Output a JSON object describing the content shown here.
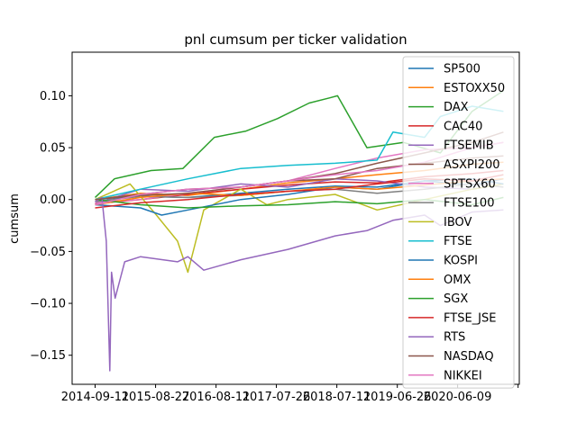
{
  "chart_data": {
    "type": "line",
    "title": "pnl cumsum per ticker validation",
    "xlabel": "",
    "ylabel": "cumsum",
    "x_tick_labels": [
      "2014-09-11",
      "2015-08-27",
      "2016-08-11",
      "2017-07-26",
      "2018-07-11",
      "2019-06-26",
      "2020-06-09"
    ],
    "x_tick_dates": [
      "2014-09-11",
      "2015-08-27",
      "2016-08-11",
      "2017-07-26",
      "2018-07-11",
      "2019-06-26",
      "2020-06-09",
      "2021-05-25"
    ],
    "xlim": [
      "2014-05-01",
      "2021-06-01"
    ],
    "ylim": [
      -0.178,
      0.142
    ],
    "yticks": [
      -0.15,
      -0.1,
      -0.05,
      0.0,
      0.05,
      0.1
    ],
    "ytick_labels": [
      "−0.15",
      "−0.10",
      "−0.05",
      "0.00",
      "0.05",
      "0.10"
    ],
    "grid": false,
    "legend_position": "top-right",
    "series": [
      {
        "name": "SP500",
        "color": "#1f77b4",
        "x": [
          "2014-09-11",
          "2015-06-01",
          "2016-03-01",
          "2017-01-01",
          "2017-10-01",
          "2018-07-01",
          "2019-03-01",
          "2019-12-01",
          "2020-09-01",
          "2021-03-01"
        ],
        "y": [
          0.0,
          0.003,
          0.002,
          0.006,
          0.01,
          0.013,
          0.012,
          0.018,
          0.014,
          0.02
        ]
      },
      {
        "name": "ESTOXX50",
        "color": "#ff7f0e",
        "x": [
          "2014-09-11",
          "2015-06-01",
          "2016-03-01",
          "2017-01-01",
          "2017-10-01",
          "2018-07-01",
          "2019-03-01",
          "2019-12-01",
          "2020-09-01",
          "2021-03-01"
        ],
        "y": [
          0.0,
          0.006,
          0.004,
          0.01,
          0.016,
          0.02,
          0.024,
          0.028,
          0.034,
          0.036
        ]
      },
      {
        "name": "DAX",
        "color": "#2ca02c",
        "x": [
          "2014-09-11",
          "2015-01-01",
          "2015-08-01",
          "2016-02-01",
          "2016-08-01",
          "2017-02-01",
          "2017-08-01",
          "2018-02-01",
          "2018-06-01",
          "2018-07-15",
          "2019-01-01",
          "2019-08-01",
          "2020-03-01",
          "2020-09-01",
          "2021-03-01"
        ],
        "y": [
          0.002,
          0.02,
          0.028,
          0.03,
          0.06,
          0.066,
          0.078,
          0.093,
          0.098,
          0.1,
          0.05,
          0.055,
          0.045,
          0.085,
          0.105
        ]
      },
      {
        "name": "CAC40",
        "color": "#d62728",
        "x": [
          "2014-09-11",
          "2015-06-01",
          "2016-03-01",
          "2017-01-01",
          "2017-10-01",
          "2018-07-01",
          "2019-03-01",
          "2019-12-01",
          "2020-09-01",
          "2021-03-01"
        ],
        "y": [
          -0.004,
          0.0,
          0.005,
          0.01,
          0.014,
          0.017,
          0.016,
          0.022,
          0.025,
          0.028
        ]
      },
      {
        "name": "FTSEMIB",
        "color": "#9467bd",
        "x": [
          "2014-09-11",
          "2015-01-01",
          "2015-06-01",
          "2016-03-01",
          "2017-01-01",
          "2017-10-01",
          "2018-07-01",
          "2019-03-01",
          "2019-12-01",
          "2020-09-01",
          "2021-03-01"
        ],
        "y": [
          -0.005,
          0.002,
          0.01,
          0.008,
          0.015,
          0.012,
          0.02,
          0.018,
          0.012,
          0.01,
          0.015
        ]
      },
      {
        "name": "ASXPI200",
        "color": "#8c564b",
        "x": [
          "2014-09-11",
          "2015-06-01",
          "2016-03-01",
          "2017-01-01",
          "2017-10-01",
          "2018-07-01",
          "2019-03-01",
          "2019-12-01",
          "2020-09-01",
          "2021-03-01"
        ],
        "y": [
          0.0,
          0.005,
          0.01,
          0.012,
          0.018,
          0.02,
          0.03,
          0.035,
          0.04,
          0.042
        ]
      },
      {
        "name": "SPTSX60",
        "color": "#e377c2",
        "x": [
          "2014-09-11",
          "2015-06-01",
          "2016-03-01",
          "2017-01-01",
          "2017-10-01",
          "2018-07-01",
          "2019-03-01",
          "2019-12-01",
          "2020-09-01",
          "2021-03-01"
        ],
        "y": [
          -0.003,
          0.0,
          0.006,
          0.012,
          0.018,
          0.03,
          0.04,
          0.048,
          0.05,
          0.055
        ]
      },
      {
        "name": "FTSE100",
        "color": "#7f7f7f",
        "x": [
          "2014-09-11",
          "2015-06-01",
          "2016-03-01",
          "2017-01-01",
          "2017-10-01",
          "2018-07-01",
          "2019-03-01",
          "2019-12-01",
          "2020-09-01",
          "2021-03-01"
        ],
        "y": [
          -0.002,
          0.003,
          0.002,
          0.004,
          0.008,
          0.01,
          0.006,
          0.01,
          0.015,
          0.012
        ]
      },
      {
        "name": "IBOV",
        "color": "#bcbd22",
        "x": [
          "2014-09-11",
          "2015-04-01",
          "2015-09-01",
          "2016-01-01",
          "2016-03-01",
          "2016-06-01",
          "2017-01-01",
          "2017-06-01",
          "2017-10-01",
          "2018-07-01",
          "2019-03-01",
          "2019-12-01",
          "2020-09-01",
          "2021-03-01"
        ],
        "y": [
          0.0,
          0.015,
          -0.015,
          -0.04,
          -0.07,
          -0.01,
          0.01,
          -0.005,
          0.0,
          0.005,
          -0.01,
          0.0,
          0.01,
          0.015
        ]
      },
      {
        "name": "FTSE",
        "color": "#17becf",
        "x": [
          "2014-09-11",
          "2015-06-01",
          "2016-03-01",
          "2017-01-01",
          "2017-10-01",
          "2018-07-01",
          "2019-03-01",
          "2019-06-01",
          "2019-12-01",
          "2020-03-01",
          "2020-09-01",
          "2021-03-01"
        ],
        "y": [
          0.0,
          0.01,
          0.02,
          0.03,
          0.033,
          0.035,
          0.038,
          0.065,
          0.06,
          0.08,
          0.09,
          0.085
        ]
      },
      {
        "name": "KOSPI",
        "color": "#1f77b4",
        "x": [
          "2014-09-11",
          "2015-06-01",
          "2015-10-01",
          "2016-03-01",
          "2017-01-01",
          "2017-10-01",
          "2018-07-01",
          "2019-03-01",
          "2019-12-01",
          "2020-09-01",
          "2021-03-01"
        ],
        "y": [
          -0.005,
          -0.008,
          -0.015,
          -0.01,
          0.0,
          0.005,
          0.012,
          0.01,
          0.018,
          0.02,
          0.015
        ]
      },
      {
        "name": "OMX",
        "color": "#ff7f0e",
        "x": [
          "2014-09-11",
          "2015-06-01",
          "2016-03-01",
          "2017-01-01",
          "2017-10-01",
          "2018-07-01",
          "2019-03-01",
          "2019-12-01",
          "2020-09-01",
          "2021-03-01"
        ],
        "y": [
          -0.005,
          0.002,
          0.006,
          0.004,
          0.008,
          0.012,
          0.01,
          0.014,
          0.018,
          0.02
        ]
      },
      {
        "name": "SGX",
        "color": "#2ca02c",
        "x": [
          "2014-09-11",
          "2015-06-01",
          "2016-03-01",
          "2017-01-01",
          "2017-10-01",
          "2018-07-01",
          "2019-03-01",
          "2019-12-01",
          "2020-09-01",
          "2021-03-01"
        ],
        "y": [
          0.0,
          -0.005,
          -0.008,
          -0.006,
          -0.005,
          -0.002,
          -0.004,
          0.0,
          -0.005,
          0.002
        ]
      },
      {
        "name": "FTSE_JSE",
        "color": "#d62728",
        "x": [
          "2014-09-11",
          "2015-06-01",
          "2016-03-01",
          "2017-01-01",
          "2017-10-01",
          "2018-07-01",
          "2019-03-01",
          "2019-12-01",
          "2020-09-01",
          "2021-03-01"
        ],
        "y": [
          -0.008,
          -0.003,
          0.0,
          0.005,
          0.008,
          0.01,
          0.015,
          0.02,
          0.018,
          0.024
        ]
      },
      {
        "name": "RTS",
        "color": "#9467bd",
        "x": [
          "2014-09-11",
          "2014-10-20",
          "2014-11-15",
          "2014-12-05",
          "2014-12-15",
          "2015-01-05",
          "2015-03-01",
          "2015-06-01",
          "2016-01-01",
          "2016-03-01",
          "2016-06-01",
          "2017-01-01",
          "2017-10-01",
          "2018-07-01",
          "2019-01-01",
          "2019-06-01",
          "2019-12-01",
          "2020-03-01",
          "2020-09-01",
          "2021-03-01"
        ],
        "y": [
          -0.002,
          0.002,
          -0.04,
          -0.165,
          -0.07,
          -0.095,
          -0.06,
          -0.055,
          -0.06,
          -0.055,
          -0.068,
          -0.058,
          -0.048,
          -0.035,
          -0.03,
          -0.02,
          -0.015,
          -0.025,
          -0.012,
          -0.01
        ]
      },
      {
        "name": "NASDAQ",
        "color": "#8c564b",
        "x": [
          "2014-09-11",
          "2015-06-01",
          "2016-03-01",
          "2017-01-01",
          "2017-10-01",
          "2018-07-01",
          "2019-03-01",
          "2019-12-01",
          "2020-09-01",
          "2021-03-01"
        ],
        "y": [
          0.0,
          0.004,
          0.006,
          0.012,
          0.018,
          0.025,
          0.035,
          0.045,
          0.055,
          0.065
        ]
      },
      {
        "name": "NIKKEI",
        "color": "#e377c2",
        "x": [
          "2014-09-11",
          "2015-06-01",
          "2016-03-01",
          "2017-01-01",
          "2017-10-01",
          "2018-07-01",
          "2019-03-01",
          "2019-12-01",
          "2020-09-01",
          "2021-03-01"
        ],
        "y": [
          -0.005,
          0.005,
          0.01,
          0.012,
          0.018,
          0.024,
          0.028,
          0.036,
          0.05,
          0.055
        ]
      }
    ]
  }
}
